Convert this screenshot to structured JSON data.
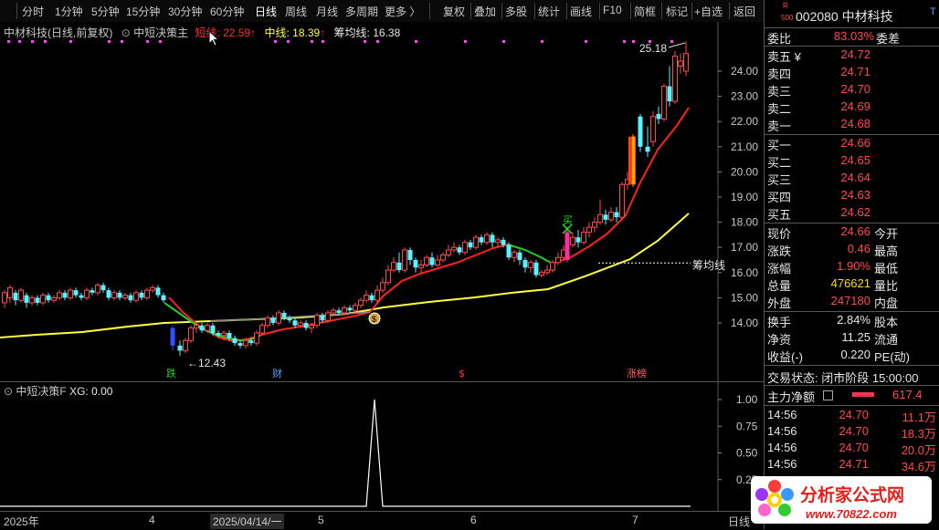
{
  "toolbar": {
    "items": [
      "分时",
      "1分钟",
      "5分钟",
      "15分钟",
      "30分钟",
      "60分钟",
      "日线",
      "周线",
      "月线",
      "多周期",
      "更多 〉",
      "复权",
      "叠加",
      "多股",
      "统计",
      "画线",
      "F10",
      "简框",
      "标记",
      "+自选",
      "返回"
    ],
    "active_item": "日线"
  },
  "main_header": {
    "stock": "中材科技",
    "mode": "(日线,前复权)",
    "indicator": "中短决策主",
    "short_label": "短线: 22.59",
    "mid_label": "中线: 18.39",
    "chip_label": "筹均线: 16.38",
    "arrow": "↑"
  },
  "price_axis": [
    "24.00",
    "23.00",
    "22.00",
    "21.00",
    "20.00",
    "19.00",
    "18.00",
    "17.00",
    "16.00",
    "15.00",
    "14.00"
  ],
  "annotations": {
    "high": "25.18",
    "low": "←12.43",
    "chip_line": "筹均线",
    "buy_marker": "买",
    "markers": [
      {
        "label": "跌",
        "color": "#1fd31f"
      },
      {
        "label": "财",
        "color": "#4fa8ff"
      },
      {
        "label": "$",
        "color": "#ff3030"
      },
      {
        "label": "涨榜",
        "color": "#ff6060"
      }
    ]
  },
  "indicator_header": {
    "name": "中短决策F",
    "value": "XG: 0.00"
  },
  "indicator_axis": [
    "1.00",
    "0.75",
    "0.50",
    "0.25"
  ],
  "date_axis": [
    {
      "label": "2025年"
    },
    {
      "label": "4"
    },
    {
      "label": "2025/04/14/一"
    },
    {
      "label": "5"
    },
    {
      "label": "6"
    },
    {
      "label": "7"
    },
    {
      "label": "日线"
    }
  ],
  "quote": {
    "badge_top": "R",
    "badge_bottom": "500",
    "code_name": "002080 中材科技",
    "menu_icon": "T",
    "weibi_label": "委比",
    "weibi_value": "83.03%",
    "weicha_label": "委差",
    "asks": [
      {
        "label": "卖五 ¥",
        "price": "24.72"
      },
      {
        "label": "卖四",
        "price": "24.71"
      },
      {
        "label": "卖三",
        "price": "24.70"
      },
      {
        "label": "卖二",
        "price": "24.69"
      },
      {
        "label": "卖一",
        "price": "24.68"
      }
    ],
    "bids": [
      {
        "label": "买一",
        "price": "24.66"
      },
      {
        "label": "买二",
        "price": "24.65"
      },
      {
        "label": "买三",
        "price": "24.64"
      },
      {
        "label": "买四",
        "price": "24.63"
      },
      {
        "label": "买五",
        "price": "24.62"
      }
    ],
    "stats": [
      {
        "label": "现价",
        "value": "24.66",
        "label2": "今开",
        "color": "#ff4a4a"
      },
      {
        "label": "涨跌",
        "value": "0.46",
        "label2": "最高",
        "color": "#ff4a4a"
      },
      {
        "label": "涨幅",
        "value": "1.90%",
        "label2": "最低",
        "color": "#ff4a4a"
      },
      {
        "label": "总量",
        "value": "476621",
        "label2": "量比",
        "color": "#f0e000"
      },
      {
        "label": "外盘",
        "value": "247180",
        "label2": "内盘",
        "color": "#ff4a4a"
      }
    ],
    "stats2": [
      {
        "label": "换手",
        "value": "2.84%",
        "label2": "股本"
      },
      {
        "label": "净资",
        "value": "11.25",
        "label2": "流通"
      },
      {
        "label": "收益(-)",
        "value": "0.220",
        "label2": "PE(动)"
      }
    ],
    "trade_status": "交易状态: 闭市阶段 15:00:00",
    "main_flow_label": "主力净额",
    "main_flow_value": "617.4",
    "ticks": [
      {
        "time": "14:56",
        "price": "24.70",
        "vol": "11.1万"
      },
      {
        "time": "14:56",
        "price": "24.70",
        "vol": "18.3万"
      },
      {
        "time": "14:56",
        "price": "24.70",
        "vol": "20.0万"
      },
      {
        "time": "14:56",
        "price": "24.71",
        "vol": "34.6万"
      }
    ]
  },
  "logo": {
    "title": "分析家公式网",
    "url": "www.70822.com"
  },
  "colors": {
    "up": "#ff4a4a",
    "down": "#5ff0ff",
    "short_line": "#ff2020",
    "mid_line": "#ffff40",
    "chip": "#ffffff",
    "magenta": "#ff40ff"
  }
}
